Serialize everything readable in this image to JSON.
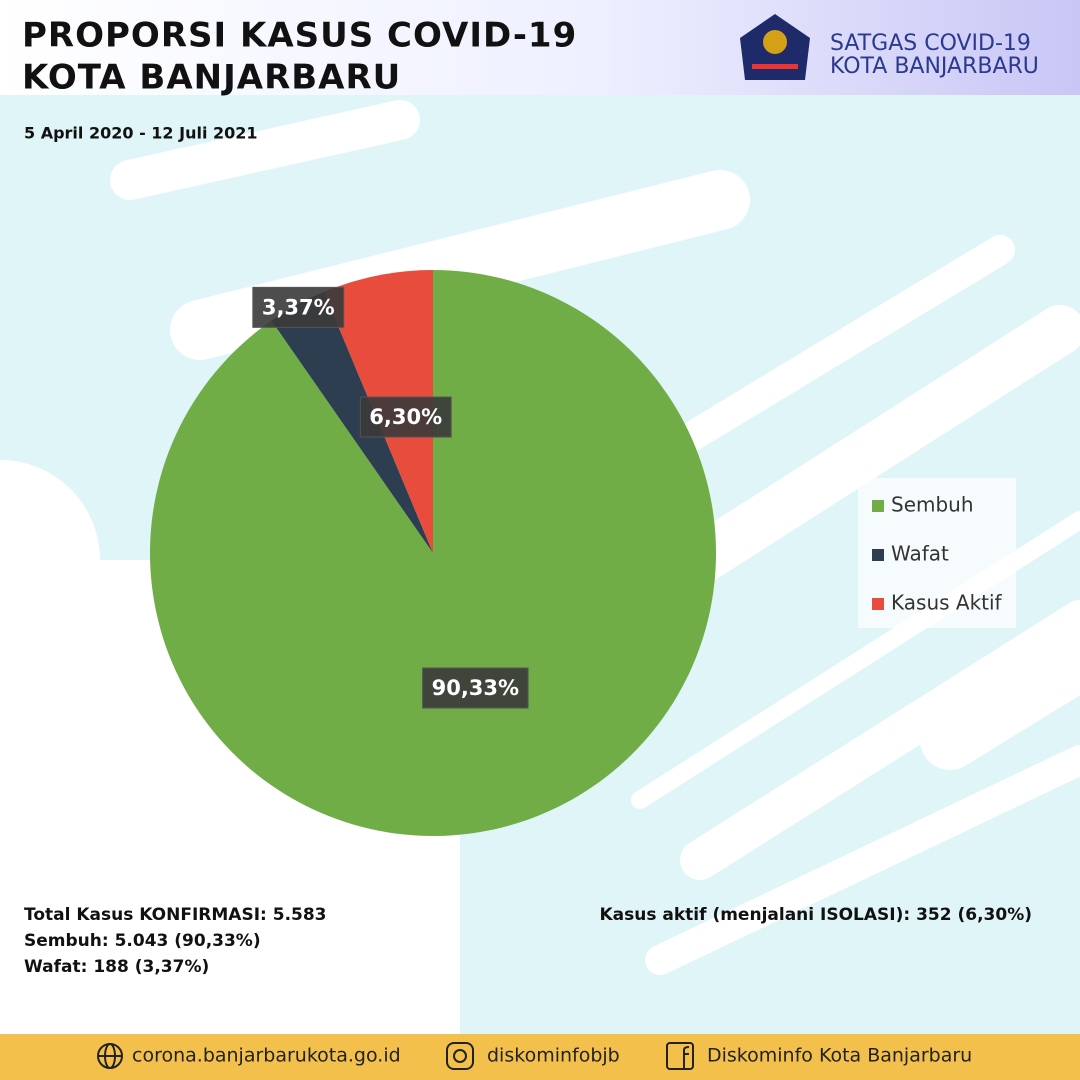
{
  "header": {
    "logo_lines": [
      "SATGAS COVID-19",
      "KOTA BANJARBARU"
    ]
  },
  "chart_data": {
    "type": "pie",
    "title": [
      "PROPORSI KASUS COVID-19",
      "KOTA BANJARBARU"
    ],
    "subtitle": "5 April 2020 - 12 Juli 2021",
    "categories": [
      "Sembuh",
      "Wafat",
      "Kasus Aktif"
    ],
    "values": [
      90.33,
      3.37,
      6.3
    ],
    "value_labels": [
      "90,33%",
      "3,37%",
      "6,30%"
    ],
    "colors": [
      "#70ad47",
      "#2c3e50",
      "#e74c3c"
    ],
    "legend": "right"
  },
  "stats": {
    "left": [
      "Total Kasus KONFIRMASI: 5.583",
      "Sembuh: 5.043 (90,33%)",
      "Wafat: 188 (3,37%)"
    ],
    "right": "Kasus aktif (menjalani ISOLASI): 352 (6,30%)"
  },
  "footer": [
    "corona.banjarbarukota.go.id",
    "diskominfobjb",
    "Diskominfo Kota Banjarbaru"
  ]
}
